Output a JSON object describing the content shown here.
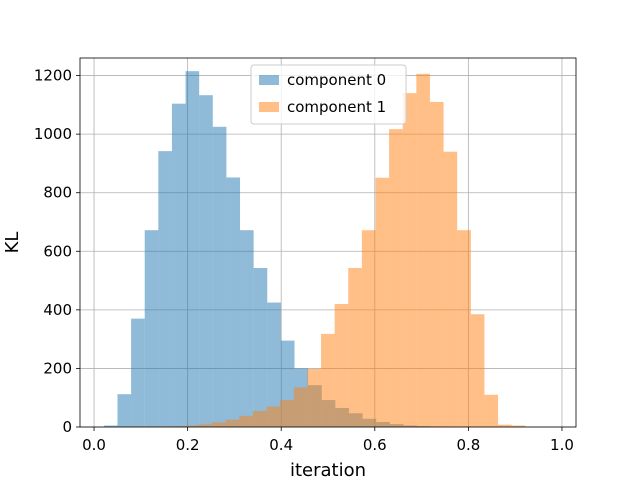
{
  "chart_data": {
    "type": "histogram",
    "xlabel": "iteration",
    "ylabel": "KL",
    "xlim": [
      -0.03,
      1.03
    ],
    "ylim": [
      0,
      1260
    ],
    "x_ticks": [
      0.0,
      0.2,
      0.4,
      0.6,
      0.8,
      1.0
    ],
    "x_tick_labels": [
      "0.0",
      "0.2",
      "0.4",
      "0.6",
      "0.8",
      "1.0"
    ],
    "y_ticks": [
      0,
      200,
      400,
      600,
      800,
      1000,
      1200
    ],
    "y_tick_labels": [
      "0",
      "200",
      "400",
      "600",
      "800",
      "1000",
      "1200"
    ],
    "grid": true,
    "legend_position": "top-center",
    "series": [
      {
        "name": "component 0",
        "color": "#1f77b4",
        "alpha": 0.5,
        "bin_start": 0.021,
        "bin_width": 0.0291,
        "counts": [
          5,
          112,
          370,
          672,
          942,
          1104,
          1215,
          1133,
          1025,
          852,
          672,
          543,
          425,
          295,
          200,
          143,
          92,
          65,
          47,
          28,
          17,
          10,
          5,
          3,
          2,
          1,
          1,
          0,
          0,
          0,
          0,
          0
        ]
      },
      {
        "name": "component 1",
        "color": "#ff7f0e",
        "alpha": 0.5,
        "bin_start": 0.0195,
        "bin_width": 0.0291,
        "counts": [
          0,
          1,
          1,
          1,
          2,
          3,
          5,
          9,
          16,
          25,
          38,
          55,
          70,
          92,
          135,
          198,
          318,
          420,
          543,
          672,
          851,
          1017,
          1140,
          1206,
          1110,
          940,
          672,
          385,
          110,
          8,
          5,
          0
        ]
      }
    ]
  }
}
